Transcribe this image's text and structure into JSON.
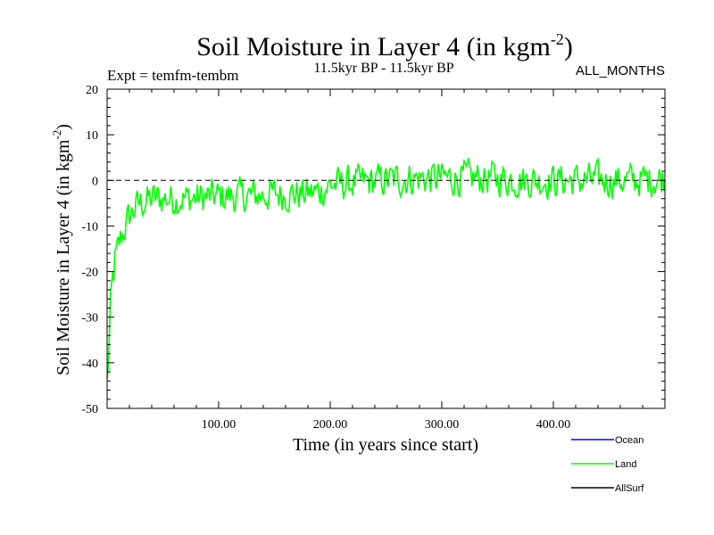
{
  "chart_data": {
    "type": "line",
    "title_main": "Soil Moisture in Layer 4 (in kgm",
    "title_sup": "-2",
    "title_close": ")",
    "subtitle": "11.5kyr BP - 11.5kyr BP",
    "expt_label": "Expt = temfm-tembm",
    "months_label": "ALL_MONTHS",
    "xlabel": "Time (in years since start)",
    "ylabel_main": "Soil Moisture in Layer 4 (in kgm",
    "ylabel_sup": "-2",
    "ylabel_close": ")",
    "xlim": [
      0,
      500
    ],
    "ylim": [
      -50,
      20
    ],
    "x_ticks": [
      100,
      200,
      300,
      400
    ],
    "x_tick_labels": [
      "100.00",
      "200.00",
      "300.00",
      "400.00"
    ],
    "y_ticks": [
      -50,
      -40,
      -30,
      -20,
      -10,
      0,
      10,
      20
    ],
    "y_tick_labels": [
      "-50",
      "-40",
      "-30",
      "-20",
      "-10",
      "0",
      "10",
      "20"
    ],
    "zero_line": true,
    "legend": [
      {
        "name": "Ocean",
        "color": "#0000ff"
      },
      {
        "name": "Land",
        "color": "#00ff00"
      },
      {
        "name": "AllSurf",
        "color": "#000000"
      }
    ],
    "series": [
      {
        "name": "Land",
        "color": "#00ff00",
        "anchors_x": [
          0,
          1,
          2,
          3,
          4,
          5,
          6,
          8,
          10,
          12,
          15,
          20,
          25,
          30,
          40,
          50,
          60,
          75,
          100,
          125,
          150,
          175,
          190,
          200,
          225,
          250,
          275,
          300,
          325,
          350,
          375,
          400,
          425,
          450,
          475,
          500
        ],
        "anchors_y": [
          -45,
          -40,
          -35,
          -30,
          -26,
          -23,
          -20,
          -17,
          -15,
          -13,
          -11,
          -8,
          -6,
          -5,
          -4,
          -4,
          -4,
          -4,
          -3.5,
          -3.5,
          -3,
          -3,
          -2.5,
          -1,
          -0.5,
          0,
          0.5,
          0.5,
          0.5,
          0.5,
          0,
          0,
          0,
          0,
          0,
          0.5
        ],
        "noise_amplitude": 3.4,
        "n_points": 500
      }
    ]
  }
}
